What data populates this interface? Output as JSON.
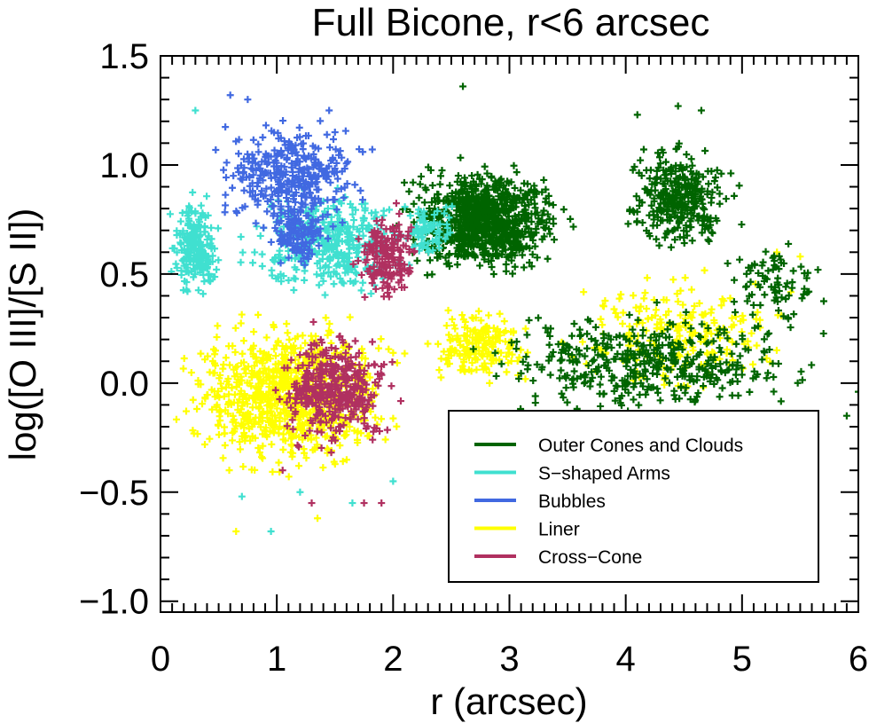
{
  "chart_data": {
    "type": "scatter",
    "title": "Full Bicone, r<6 arcsec",
    "xlabel": "r (arcsec)",
    "ylabel": "log([O III]/[S II])",
    "xlim": [
      0,
      6
    ],
    "ylim": [
      -1.05,
      1.5
    ],
    "xticks": [
      "0",
      "1",
      "2",
      "3",
      "4",
      "5",
      "6"
    ],
    "yticks": [
      "1.5",
      "1.0",
      "0.5",
      "0.0",
      "−0.5",
      "−1.0"
    ],
    "xtick_values": [
      0,
      1,
      2,
      3,
      4,
      5,
      6
    ],
    "ytick_values": [
      1.5,
      1.0,
      0.5,
      0.0,
      -0.5,
      -1.0
    ],
    "marker": "plus",
    "legend_position": "lower-right",
    "series": [
      {
        "name": "Outer Cones and Clouds",
        "color": "#006400",
        "clusters": [
          {
            "x": [
              1.95,
              3.6
            ],
            "y": [
              0.45,
              1.05
            ],
            "n": 900
          },
          {
            "x": [
              3.9,
              5.0
            ],
            "y": [
              0.55,
              1.15
            ],
            "n": 320
          },
          {
            "x": [
              2.5,
              5.9
            ],
            "y": [
              -0.2,
              0.4
            ],
            "n": 420
          },
          {
            "x": [
              4.8,
              5.8
            ],
            "y": [
              0.2,
              0.7
            ],
            "n": 80
          }
        ],
        "extra_points": [
          [
            2.6,
            1.36
          ],
          [
            4.45,
            1.27
          ],
          [
            4.65,
            1.25
          ],
          [
            4.1,
            1.23
          ],
          [
            5.9,
            -0.15
          ],
          [
            6.0,
            -0.04
          ]
        ]
      },
      {
        "name": "S-shaped Arms",
        "color": "#40e0d0",
        "clusters": [
          {
            "x": [
              0.05,
              0.55
            ],
            "y": [
              0.35,
              0.9
            ],
            "n": 220
          },
          {
            "x": [
              0.6,
              2.3
            ],
            "y": [
              0.35,
              0.95
            ],
            "n": 380
          },
          {
            "x": [
              2.0,
              2.6
            ],
            "y": [
              0.55,
              0.85
            ],
            "n": 80
          }
        ],
        "extra_points": [
          [
            0.3,
            1.25
          ],
          [
            1.65,
            -0.55
          ],
          [
            1.2,
            -0.5
          ],
          [
            0.7,
            -0.52
          ],
          [
            0.95,
            -0.68
          ],
          [
            2.0,
            -0.45
          ]
        ]
      },
      {
        "name": "Bubbles",
        "color": "#4169e1",
        "clusters": [
          {
            "x": [
              0.35,
              1.9
            ],
            "y": [
              0.65,
              1.25
            ],
            "n": 360
          },
          {
            "x": [
              0.9,
              1.5
            ],
            "y": [
              0.5,
              0.85
            ],
            "n": 120
          }
        ],
        "extra_points": [
          [
            0.6,
            1.32
          ],
          [
            0.75,
            1.3
          ],
          [
            1.45,
            1.25
          ],
          [
            1.5,
            1.15
          ]
        ]
      },
      {
        "name": "Liner",
        "color": "#ffff00",
        "clusters": [
          {
            "x": [
              0.05,
              2.2
            ],
            "y": [
              -0.45,
              0.35
            ],
            "n": 900
          },
          {
            "x": [
              2.2,
              3.3
            ],
            "y": [
              -0.05,
              0.4
            ],
            "n": 180
          },
          {
            "x": [
              3.3,
              5.6
            ],
            "y": [
              -0.1,
              0.55
            ],
            "n": 220
          }
        ],
        "extra_points": [
          [
            0.65,
            -0.68
          ],
          [
            1.35,
            -0.62
          ],
          [
            5.3,
            0.6
          ],
          [
            5.5,
            0.58
          ]
        ]
      },
      {
        "name": "Cross-Cone",
        "color": "#b03060",
        "clusters": [
          {
            "x": [
              0.9,
              2.1
            ],
            "y": [
              -0.35,
              0.3
            ],
            "n": 380
          },
          {
            "x": [
              1.6,
              2.3
            ],
            "y": [
              0.3,
              0.85
            ],
            "n": 170
          }
        ],
        "extra_points": [
          [
            1.3,
            -0.55
          ],
          [
            1.75,
            -0.55
          ],
          [
            1.9,
            -0.55
          ],
          [
            1.05,
            -0.4
          ]
        ]
      }
    ]
  },
  "legend": {
    "items": [
      {
        "label": "Outer Cones and Clouds",
        "color": "#006400"
      },
      {
        "label": "S−shaped Arms",
        "color": "#40e0d0"
      },
      {
        "label": "Bubbles",
        "color": "#4169e1"
      },
      {
        "label": "Liner",
        "color": "#ffff00"
      },
      {
        "label": "Cross−Cone",
        "color": "#b03060"
      }
    ]
  }
}
